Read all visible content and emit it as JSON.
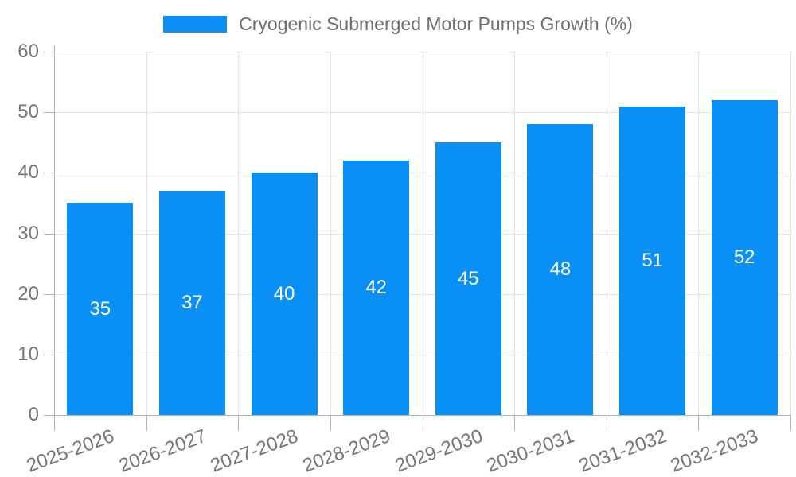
{
  "chart_data": {
    "type": "bar",
    "title": "Cryogenic Submerged Motor Pumps Growth (%)",
    "legend_entries": [
      "Cryogenic Submerged Motor Pumps Growth (%)"
    ],
    "legend_position": "top-center",
    "categories": [
      "2025-2026",
      "2026-2027",
      "2027-2028",
      "2028-2029",
      "2029-2030",
      "2030-2031",
      "2031-2032",
      "2032-2033"
    ],
    "values": [
      35,
      37,
      40,
      42,
      45,
      48,
      51,
      52
    ],
    "xlabel": "",
    "ylabel": "",
    "ylim": [
      0,
      60
    ],
    "yticks": [
      0,
      10,
      20,
      30,
      40,
      50,
      60
    ],
    "grid": "on",
    "bar_labels_inside": true,
    "x_tick_label_rotation_deg": -20,
    "colors": {
      "bar": "#0a90f4",
      "bar_label": "#ffffff",
      "grid_line": "#e3e3e3",
      "axis_line": "#b3b3b3",
      "tick_label": "#757575",
      "title_text": "#6e6e6e",
      "background": "#ffffff"
    }
  }
}
